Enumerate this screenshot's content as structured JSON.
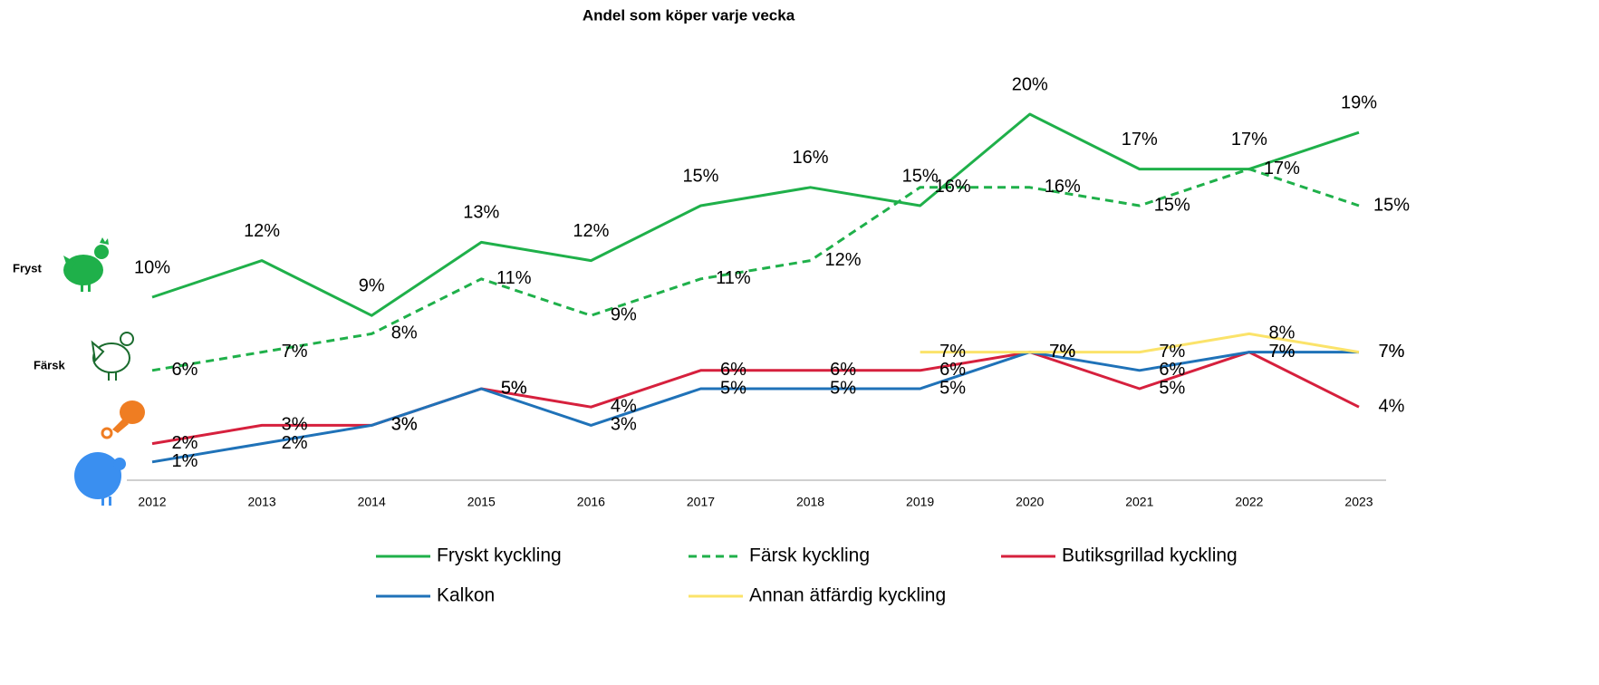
{
  "chart_data": {
    "type": "line",
    "title": "Andel som köper varje vecka",
    "annotations": [
      "Fryst",
      "Färsk"
    ],
    "categories": [
      "2012",
      "2013",
      "2014",
      "2015",
      "2016",
      "2017",
      "2018",
      "2019",
      "2020",
      "2021",
      "2022",
      "2023"
    ],
    "ylim": [
      0,
      20
    ],
    "series": [
      {
        "name": "Fryskt kyckling",
        "color": "#1fb04a",
        "dash": false,
        "values": [
          10,
          12,
          9,
          13,
          12,
          15,
          16,
          15,
          20,
          17,
          17,
          19
        ],
        "value_labels": [
          "10%",
          "12%",
          "9%",
          "13%",
          "12%",
          "15%",
          "16%",
          "15%",
          "20%",
          "17%",
          "17%",
          "19%"
        ]
      },
      {
        "name": "Färsk kyckling",
        "color": "#1fb04a",
        "dash": true,
        "values": [
          6,
          7,
          8,
          11,
          9,
          11,
          12,
          16,
          16,
          15,
          17,
          15
        ],
        "value_labels": [
          "6%",
          "7%",
          "8%",
          "11%",
          "9%",
          "11%",
          "12%",
          "16%",
          "16%",
          "15%",
          "17%",
          "15%"
        ]
      },
      {
        "name": "Butiksgrillad kyckling",
        "color": "#d6203d",
        "dash": false,
        "values": [
          2,
          3,
          3,
          5,
          4,
          6,
          6,
          6,
          7,
          5,
          7,
          4
        ],
        "value_labels": [
          "2%",
          "3%",
          "3%",
          "5%",
          "4%",
          "6%",
          "6%",
          "6%",
          "7%",
          "5%",
          "7%",
          "4%"
        ]
      },
      {
        "name": "Kalkon",
        "color": "#1f72b8",
        "dash": false,
        "values": [
          1,
          2,
          3,
          5,
          3,
          5,
          5,
          5,
          7,
          6,
          7,
          7
        ],
        "value_labels": [
          "1%",
          "2%",
          "3%",
          "5%",
          "3%",
          "5%",
          "5%",
          "5%",
          "7%",
          "6%",
          "7%",
          "7%"
        ]
      },
      {
        "name": "Annan ätfärdig kyckling",
        "color": "#fbe36a",
        "dash": false,
        "values": [
          null,
          null,
          null,
          null,
          null,
          null,
          null,
          7,
          7,
          7,
          8,
          7
        ],
        "value_labels": [
          null,
          null,
          null,
          null,
          null,
          null,
          null,
          "7%",
          "7%",
          "7%",
          "8%",
          "7%"
        ]
      }
    ]
  }
}
